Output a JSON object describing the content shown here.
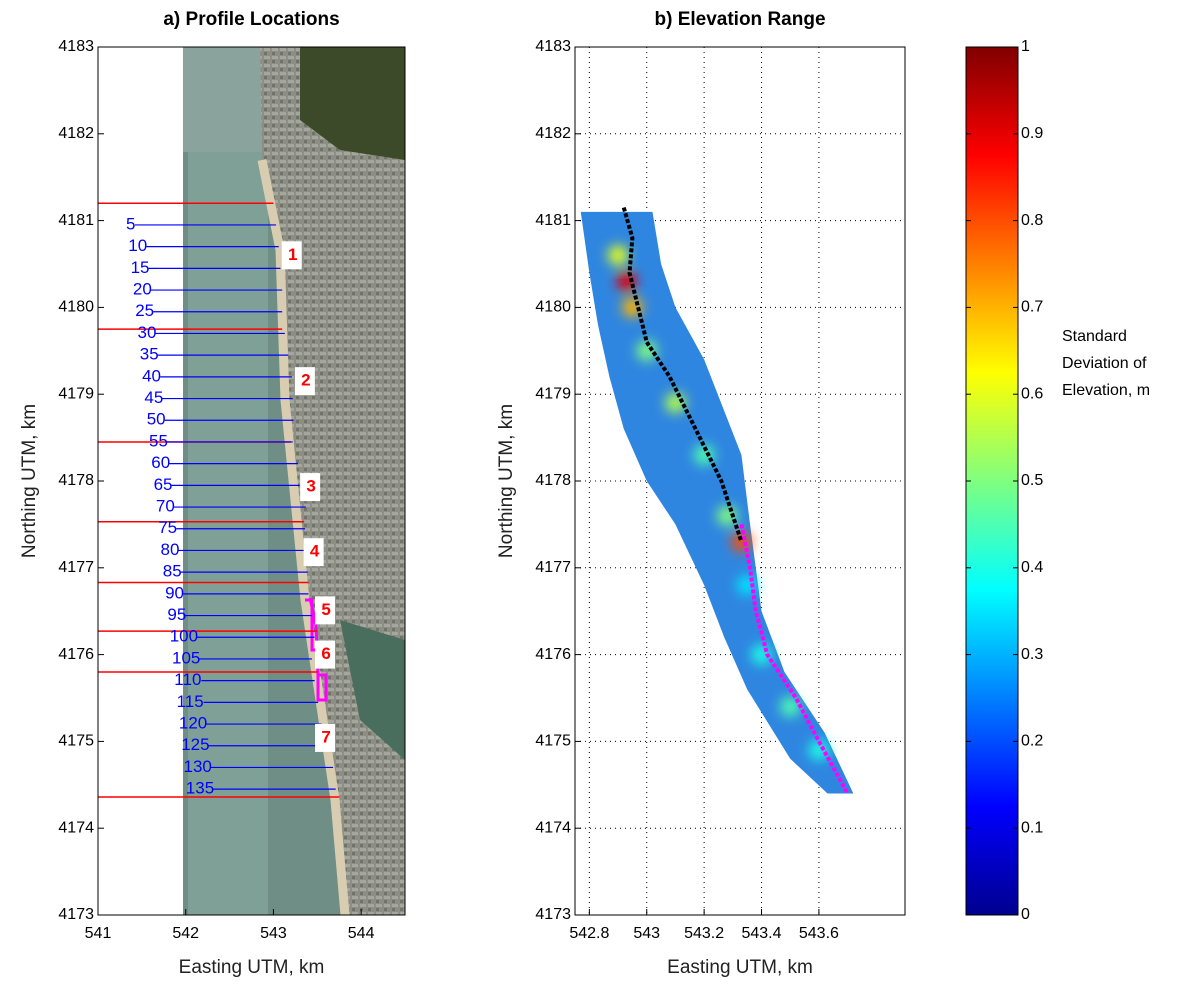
{
  "chart_data": [
    {
      "type": "profile-map",
      "title": "a) Profile Locations",
      "x_label": "Easting UTM, km",
      "y_label": "Northing UTM, km",
      "xlim": [
        541,
        544.5
      ],
      "xticks": [
        541,
        542,
        543,
        544
      ],
      "ylim": [
        4173,
        4183
      ],
      "yticks": [
        4173,
        4174,
        4175,
        4176,
        4177,
        4178,
        4179,
        4180,
        4181,
        4182,
        4183
      ],
      "profiles": {
        "color": "#0000ff",
        "labels": [
          "5",
          "10",
          "15",
          "20",
          "25",
          "30",
          "35",
          "40",
          "45",
          "50",
          "55",
          "60",
          "65",
          "70",
          "75",
          "80",
          "85",
          "90",
          "95",
          "100",
          "105",
          "110",
          "115",
          "120",
          "125",
          "130",
          "135"
        ],
        "y": [
          4180.95,
          4180.7,
          4180.45,
          4180.2,
          4179.95,
          4179.7,
          4179.45,
          4179.2,
          4178.95,
          4178.7,
          4178.45,
          4178.2,
          4177.95,
          4177.7,
          4177.45,
          4177.2,
          4176.95,
          4176.7,
          4176.45,
          4176.2,
          4175.95,
          4175.7,
          4175.45,
          4175.2,
          4174.95,
          4174.7,
          4174.45
        ],
        "x_end": [
          543.03,
          543.06,
          543.08,
          543.1,
          543.1,
          543.13,
          543.17,
          543.21,
          543.22,
          543.23,
          543.22,
          543.28,
          543.3,
          543.37,
          543.36,
          543.36,
          543.39,
          543.4,
          543.44,
          543.47,
          543.44,
          543.47,
          543.51,
          543.55,
          543.6,
          543.68,
          543.71
        ]
      },
      "boundaries": {
        "color": "#ff0000",
        "y": [
          4181.2,
          4179.75,
          4178.45,
          4177.53,
          4176.83,
          4176.27,
          4175.8,
          4174.36
        ],
        "x_end": [
          543.0,
          543.1,
          543.2,
          543.35,
          543.4,
          543.5,
          543.5,
          543.75
        ]
      },
      "regions": {
        "color": "#ff0000",
        "labels": [
          "1",
          "2",
          "3",
          "4",
          "5",
          "6",
          "7"
        ],
        "x": [
          543.22,
          543.37,
          543.43,
          543.47,
          543.6,
          543.6,
          543.6
        ],
        "y": [
          4180.6,
          4179.15,
          4177.93,
          4177.18,
          4176.51,
          4176.0,
          4175.04
        ]
      }
    },
    {
      "type": "std-map",
      "title": "b) Elevation Range",
      "x_label": "Easting UTM, km",
      "y_label": "Northing UTM, km",
      "xlim": [
        542.75,
        543.9
      ],
      "xticks": [
        542.8,
        543,
        543.2,
        543.4,
        543.6
      ],
      "ylim": [
        4173,
        4183
      ],
      "yticks": [
        4173,
        4174,
        4175,
        4176,
        4177,
        4178,
        4179,
        4180,
        4181,
        4182,
        4183
      ],
      "grid": true,
      "swath": {
        "color": "#2f86e0",
        "x": [
          542.77,
          543.02,
          543.05,
          543.1,
          543.2,
          543.33,
          543.36,
          543.4,
          543.48,
          543.62,
          543.72,
          543.63,
          543.5,
          543.35,
          543.27,
          543.2,
          543.1,
          543.0,
          542.92,
          542.87,
          542.83,
          542.8
        ],
        "y": [
          4181.1,
          4181.1,
          4180.5,
          4180.0,
          4179.4,
          4178.3,
          4177.5,
          4176.5,
          4175.8,
          4175.1,
          4174.4,
          4174.4,
          4174.8,
          4175.6,
          4176.2,
          4176.8,
          4177.5,
          4178.0,
          4178.6,
          4179.2,
          4179.8,
          4180.4
        ]
      },
      "std": {
        "x": [
          542.93,
          542.95,
          542.9,
          543.0,
          543.1,
          543.2,
          543.28,
          543.33,
          543.35,
          543.4,
          543.5,
          543.6
        ],
        "y": [
          4180.3,
          4180.0,
          4180.6,
          4179.5,
          4178.9,
          4178.3,
          4177.6,
          4177.3,
          4176.8,
          4176.0,
          4175.4,
          4174.9
        ],
        "values": [
          0.9,
          0.7,
          0.6,
          0.5,
          0.55,
          0.45,
          0.5,
          0.8,
          0.35,
          0.4,
          0.45,
          0.4
        ]
      },
      "crest": {
        "color": "#000000",
        "x": [
          542.92,
          542.95,
          542.94,
          542.97,
          543.0,
          543.08,
          543.14,
          543.2,
          543.26,
          543.3,
          543.33
        ],
        "y": [
          4181.15,
          4180.8,
          4180.4,
          4180.0,
          4179.6,
          4179.2,
          4178.8,
          4178.4,
          4178.0,
          4177.6,
          4177.3
        ]
      },
      "shoreline": {
        "color": "#ff00ff",
        "x": [
          543.33,
          543.36,
          543.38,
          543.42,
          543.52,
          543.6,
          543.7
        ],
        "y": [
          4177.5,
          4177.0,
          4176.5,
          4176.0,
          4175.5,
          4175.0,
          4174.4
        ]
      },
      "colorbar": {
        "zlim": [
          0,
          1
        ],
        "ticks": [
          0,
          0.1,
          0.2,
          0.3,
          0.4,
          0.5,
          0.6,
          0.7,
          0.8,
          0.9,
          1
        ],
        "label": [
          "Standard",
          "Deviation of",
          "Elevation, m"
        ]
      }
    }
  ]
}
